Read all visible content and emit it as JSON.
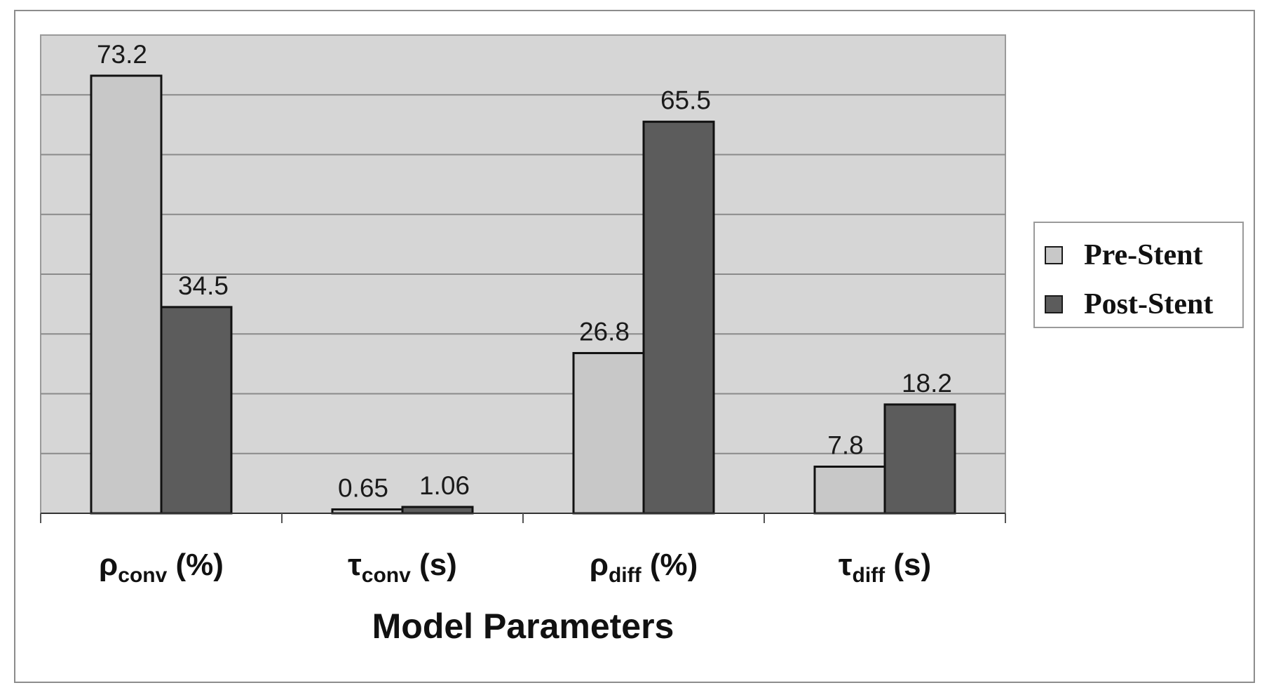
{
  "chart_data": {
    "type": "bar",
    "categories": [
      {
        "main": "ρ",
        "sub": "conv",
        "unit": "(%)"
      },
      {
        "main": "τ",
        "sub": "conv",
        "unit": "(s)"
      },
      {
        "main": "ρ",
        "sub": "diff",
        "unit": "(%)"
      },
      {
        "main": "τ",
        "sub": "diff",
        "unit": "(s)"
      }
    ],
    "series": [
      {
        "name": "Pre-Stent",
        "values": [
          73.2,
          0.65,
          26.8,
          7.8
        ],
        "labels": [
          "73.2",
          "0.65",
          "26.8",
          "7.8"
        ],
        "color": "#c8c8c8"
      },
      {
        "name": "Post-Stent",
        "values": [
          34.5,
          1.06,
          65.5,
          18.2
        ],
        "labels": [
          "34.5",
          "1.06",
          "65.5",
          "18.2"
        ],
        "color": "#5c5c5c"
      }
    ],
    "xlabel": "Model Parameters",
    "ylabel": "",
    "ylim": [
      0,
      80
    ],
    "grid": true,
    "legend_position": "right",
    "plot_background": "#d6d6d6"
  }
}
